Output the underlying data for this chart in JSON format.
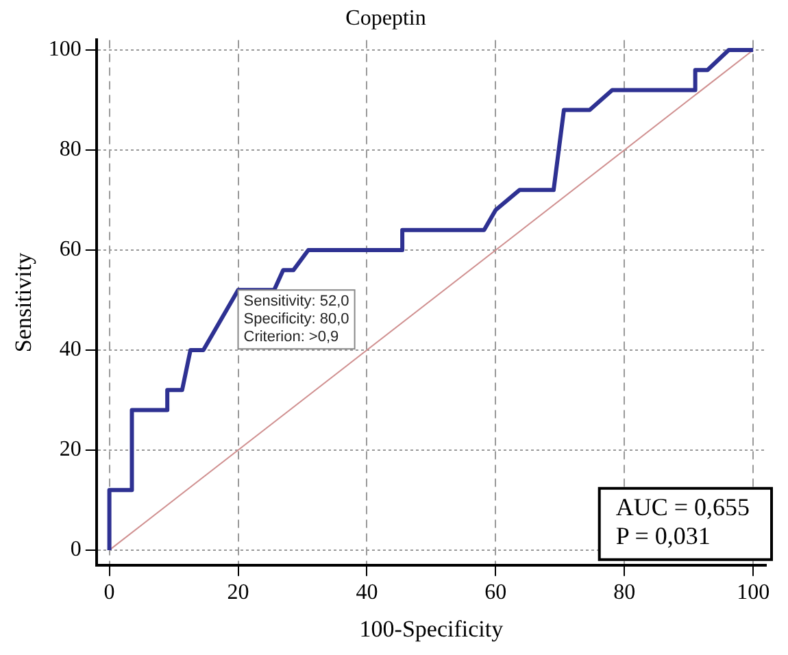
{
  "chart_data": {
    "type": "line",
    "title": "Copeptin",
    "xlabel": "100-Specificity",
    "ylabel": "Sensitivity",
    "xlim": [
      -2,
      102
    ],
    "ylim": [
      -3,
      102
    ],
    "xticks": [
      0,
      20,
      40,
      60,
      80,
      100
    ],
    "yticks": [
      0,
      20,
      40,
      60,
      80,
      100
    ],
    "grid": true,
    "legend": false,
    "marker": "none",
    "line_style": "solid",
    "series": [
      {
        "color": "#2e3192",
        "x": [
          0,
          0,
          3.5,
          3.5,
          9,
          9,
          11.3,
          12.6,
          14.6,
          20,
          25.6,
          27,
          28.6,
          30.9,
          45.5,
          45.5,
          58.2,
          60,
          63.7,
          69,
          70.6,
          74.6,
          78.1,
          91,
          91,
          92.9,
          96.2,
          100
        ],
        "values": [
          0,
          12,
          12,
          28,
          28,
          32,
          32,
          40,
          40,
          52,
          52,
          56,
          56,
          60,
          60,
          64,
          64,
          68,
          72,
          72,
          88,
          88,
          92,
          92,
          96,
          96,
          100,
          100
        ]
      },
      {
        "color": "#d09090",
        "x": [
          0,
          100
        ],
        "values": [
          0,
          100
        ]
      }
    ],
    "annotations": [
      {
        "text": "Sensitivity: 52,0\nSpecificity: 80,0\nCriterion: >0,9",
        "x": 20,
        "y": 52
      },
      "AUC = 0,655\nP = 0,031"
    ]
  }
}
